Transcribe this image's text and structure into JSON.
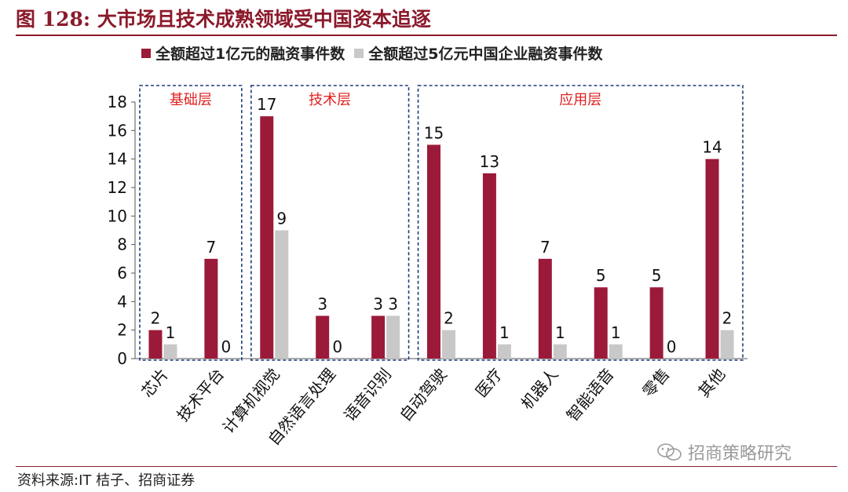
{
  "header": {
    "figure_title": "图 128:  大市场且技术成熟领域受中国资本追逐"
  },
  "legend": [
    {
      "label": "全额超过1亿元的融资事件数",
      "color": "#9b1a3a"
    },
    {
      "label": "全额超过5亿元中国企业融资事件数",
      "color": "#c8c8c8"
    }
  ],
  "chart_data": {
    "type": "bar",
    "categories": [
      "芯片",
      "技术平台",
      "计算机视觉",
      "自然语言处理",
      "语音识别",
      "自动驾驶",
      "医疗",
      "机器人",
      "智能语音",
      "零售",
      "其他"
    ],
    "series": [
      {
        "name": "全额超过1亿元的融资事件数",
        "values": [
          2,
          7,
          17,
          3,
          3,
          15,
          13,
          7,
          5,
          5,
          14
        ],
        "color": "#9b1a3a"
      },
      {
        "name": "全额超过5亿元中国企业融资事件数",
        "values": [
          1,
          0,
          9,
          0,
          3,
          2,
          1,
          1,
          1,
          0,
          2
        ],
        "color": "#c8c8c8"
      }
    ],
    "ylim": [
      0,
      18
    ],
    "yticks": [
      0,
      2,
      4,
      6,
      8,
      10,
      12,
      14,
      16,
      18
    ],
    "groups": [
      {
        "label": "基础层",
        "from": 0,
        "to": 1
      },
      {
        "label": "技术层",
        "from": 2,
        "to": 4
      },
      {
        "label": "应用层",
        "from": 5,
        "to": 10
      }
    ],
    "group_label_color": "#e02020",
    "group_border_color": "#1f3c78",
    "grid": false
  },
  "footer": {
    "source": "资料来源:IT 桔子、招商证券",
    "watermark": "招商策略研究"
  }
}
